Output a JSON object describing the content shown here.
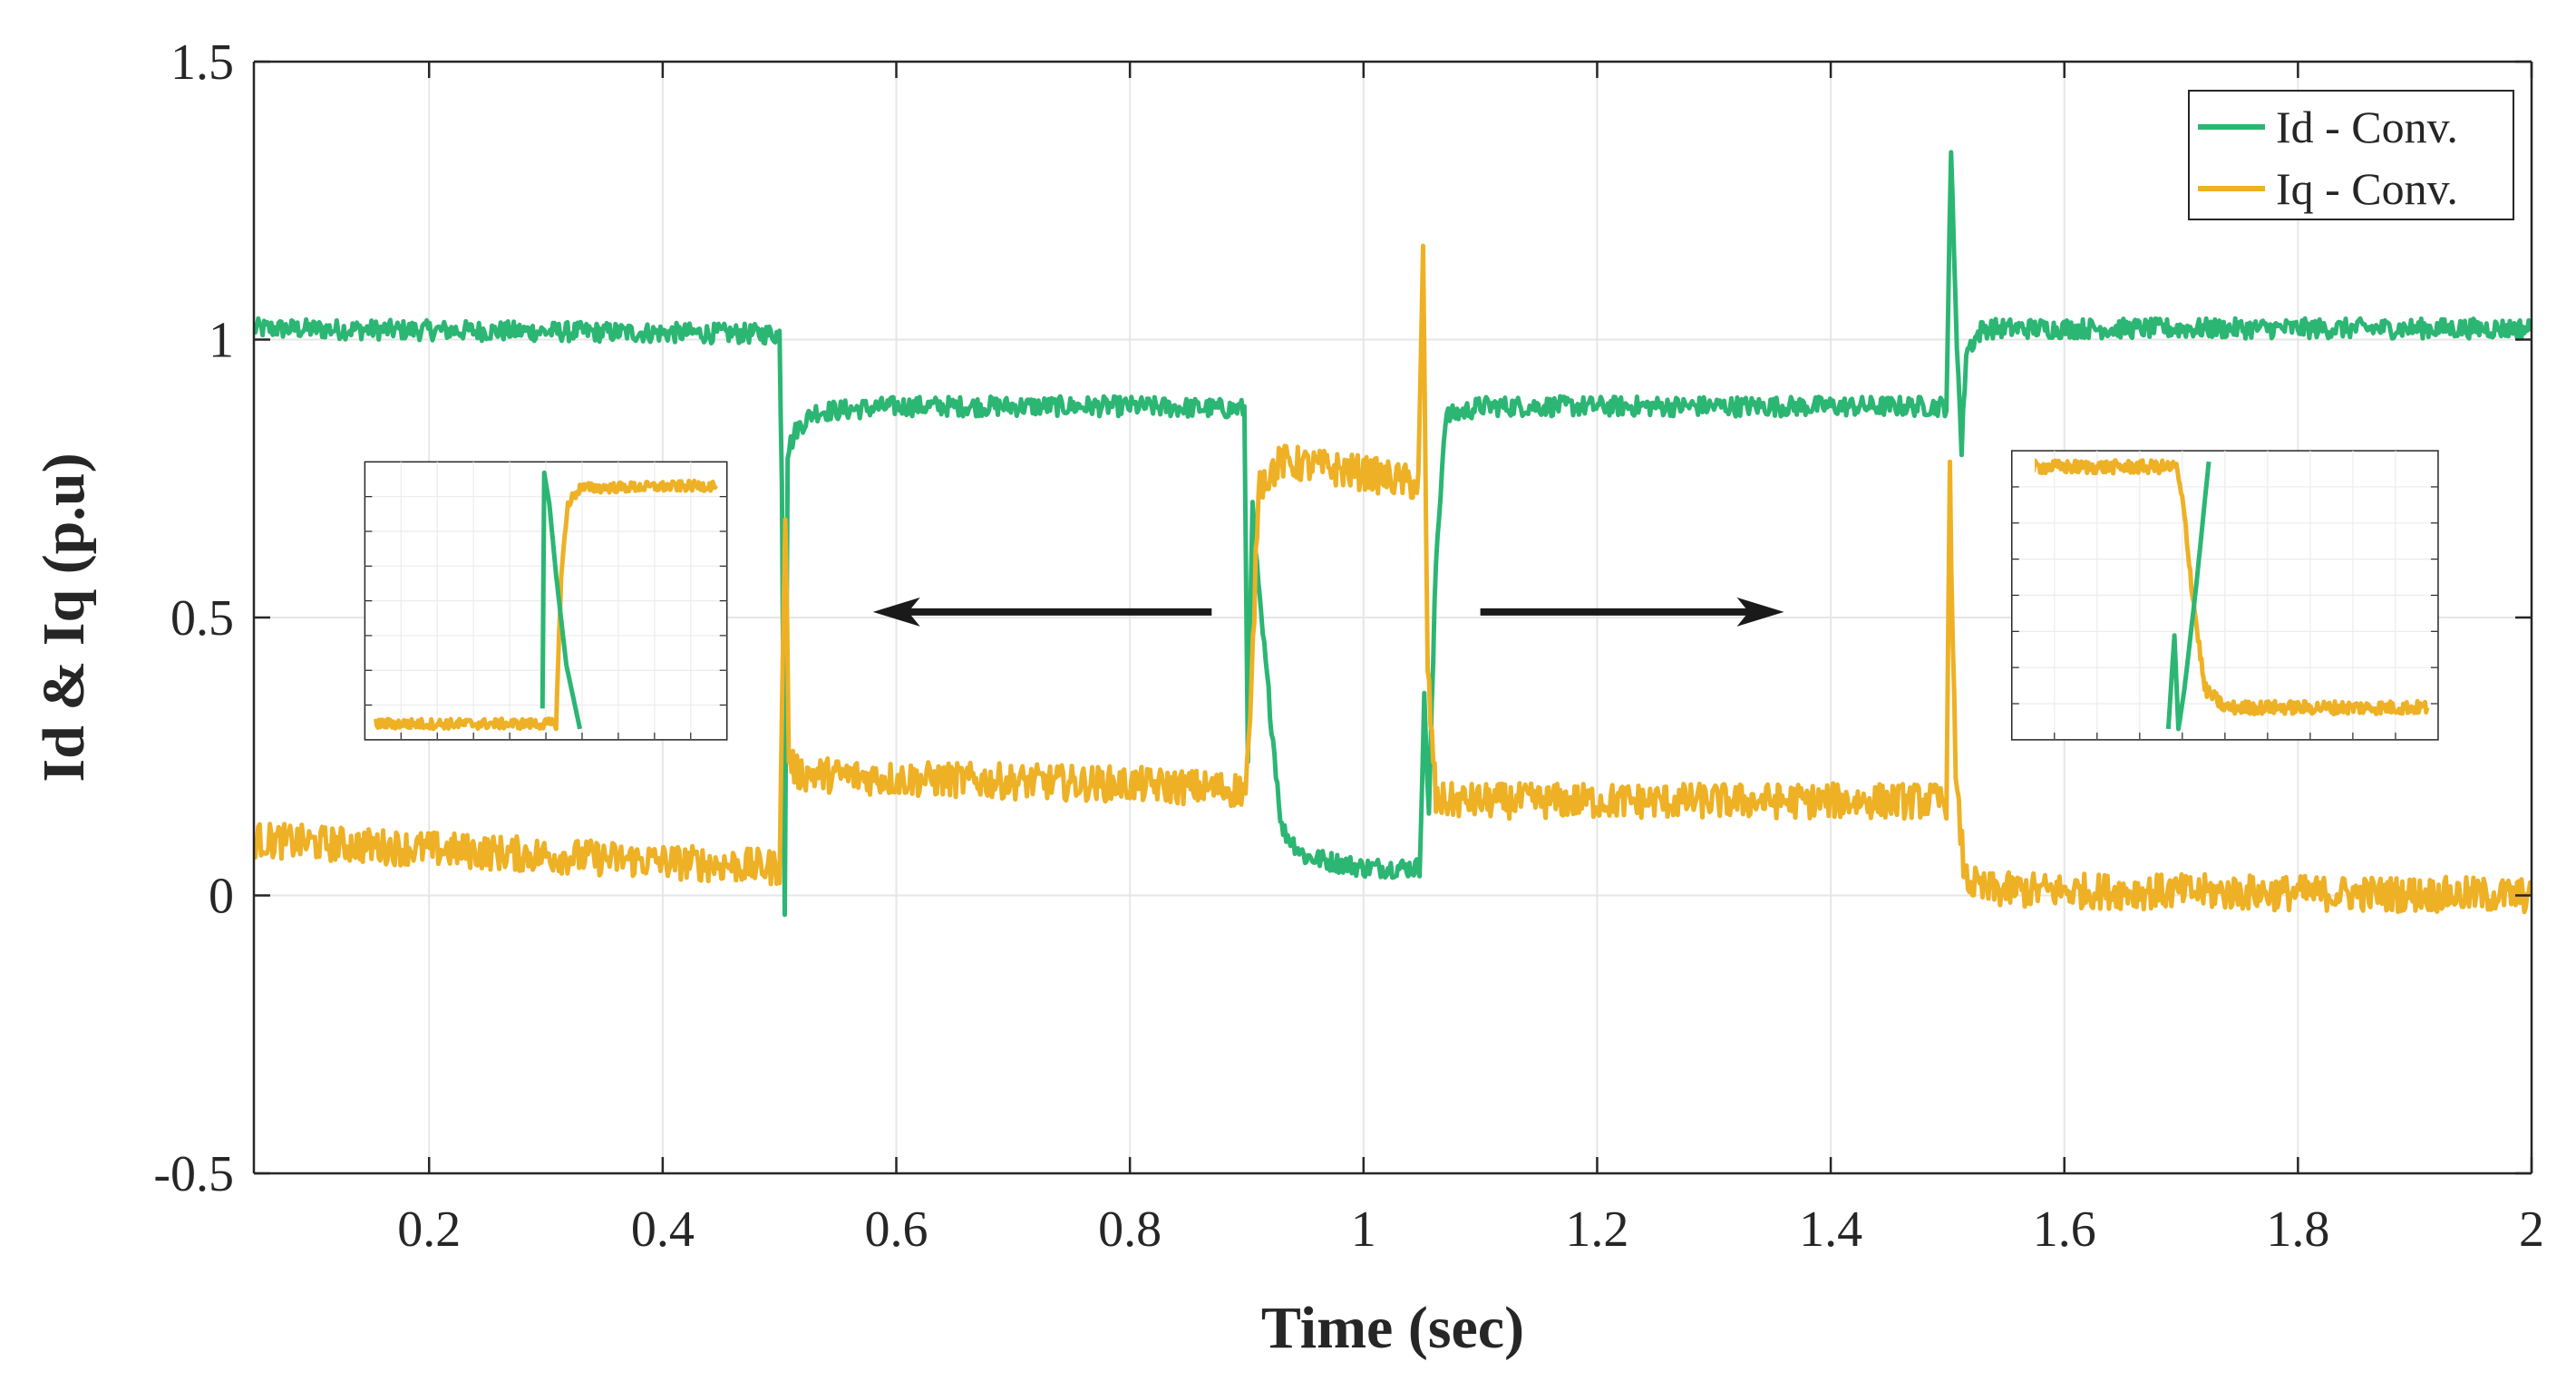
{
  "chart_data": {
    "type": "line",
    "title": "",
    "xlabel": "Time (sec)",
    "ylabel": "Id & Iq (p.u)",
    "xlim": [
      0.05,
      2.0
    ],
    "ylim": [
      -0.5,
      1.5
    ],
    "xticks": [
      0.2,
      0.4,
      0.6,
      0.8,
      1.0,
      1.2,
      1.4,
      1.6,
      1.8,
      2.0
    ],
    "xtick_labels": [
      "0.2",
      "0.4",
      "0.6",
      "0.8",
      "1",
      "1.2",
      "1.4",
      "1.6",
      "1.8",
      "2"
    ],
    "yticks": [
      -0.5,
      0,
      0.5,
      1,
      1.5
    ],
    "ytick_labels": [
      "-0.5",
      "0",
      "0.5",
      "1",
      "1.5"
    ],
    "grid": true,
    "legend_position": "top-right",
    "colors": {
      "id": "#2bb673",
      "iq": "#eeb125",
      "axis": "#262626",
      "grid": "#e6e6e6",
      "arrow": "#1a1a1a"
    },
    "series": [
      {
        "name": "Id - Conv.",
        "color": "#2bb673",
        "noise": 0.018,
        "points": [
          [
            0.05,
            1.02
          ],
          [
            0.5,
            1.01
          ],
          [
            0.502,
            0.75
          ],
          [
            0.5045,
            -0.02
          ],
          [
            0.507,
            0.8
          ],
          [
            0.515,
            0.84
          ],
          [
            0.53,
            0.87
          ],
          [
            0.6,
            0.88
          ],
          [
            0.8,
            0.88
          ],
          [
            0.898,
            0.875
          ],
          [
            0.901,
            0.25
          ],
          [
            0.905,
            0.7
          ],
          [
            0.91,
            0.55
          ],
          [
            0.93,
            0.12
          ],
          [
            0.95,
            0.07
          ],
          [
            1.0,
            0.05
          ],
          [
            1.048,
            0.05
          ],
          [
            1.052,
            0.35
          ],
          [
            1.056,
            0.15
          ],
          [
            1.062,
            0.6
          ],
          [
            1.07,
            0.86
          ],
          [
            1.1,
            0.88
          ],
          [
            1.3,
            0.88
          ],
          [
            1.499,
            0.88
          ],
          [
            1.503,
            1.33
          ],
          [
            1.508,
            1.0
          ],
          [
            1.512,
            0.8
          ],
          [
            1.516,
            0.98
          ],
          [
            1.53,
            1.02
          ],
          [
            2.0,
            1.02
          ]
        ]
      },
      {
        "name": "Iq - Conv.",
        "color": "#eeb125",
        "noise": 0.032,
        "points": [
          [
            0.05,
            0.1
          ],
          [
            0.5,
            0.05
          ],
          [
            0.502,
            0.3
          ],
          [
            0.505,
            0.7
          ],
          [
            0.508,
            0.25
          ],
          [
            0.515,
            0.22
          ],
          [
            0.6,
            0.21
          ],
          [
            0.8,
            0.2
          ],
          [
            0.899,
            0.19
          ],
          [
            0.903,
            0.3
          ],
          [
            0.91,
            0.74
          ],
          [
            0.93,
            0.78
          ],
          [
            1.0,
            0.76
          ],
          [
            1.047,
            0.74
          ],
          [
            1.051,
            1.15
          ],
          [
            1.055,
            0.4
          ],
          [
            1.062,
            0.17
          ],
          [
            1.1,
            0.17
          ],
          [
            1.3,
            0.17
          ],
          [
            1.499,
            0.17
          ],
          [
            1.502,
            0.75
          ],
          [
            1.507,
            0.2
          ],
          [
            1.515,
            0.03
          ],
          [
            1.53,
            0.01
          ],
          [
            2.0,
            0.0
          ]
        ]
      }
    ],
    "annotations": [
      {
        "type": "arrow",
        "direction": "left",
        "from": [
          0.87,
          0.51
        ],
        "to": [
          0.58,
          0.51
        ]
      },
      {
        "type": "arrow",
        "direction": "right",
        "from": [
          1.1,
          0.51
        ],
        "to": [
          1.36,
          0.51
        ]
      }
    ],
    "insets": [
      {
        "name": "zoom near t = 0.5 s",
        "location": [
          0.145,
          0.78,
          0.455,
          0.28
        ],
        "xlim": [
          0,
          1
        ],
        "ylim": [
          0,
          1
        ],
        "series": [
          {
            "name": "Iq - Conv.",
            "color": "#eeb125",
            "noise": 0.02,
            "points": [
              [
                0,
                0.02
              ],
              [
                0.53,
                0.02
              ],
              [
                0.545,
                0.6
              ],
              [
                0.565,
                0.88
              ],
              [
                0.6,
                0.94
              ],
              [
                1.0,
                0.95
              ]
            ]
          },
          {
            "name": "Id - Conv.",
            "color": "#2bb673",
            "noise": 0.0,
            "points": [
              [
                0.49,
                0.08
              ],
              [
                0.495,
                1.0
              ],
              [
                0.51,
                0.88
              ],
              [
                0.53,
                0.6
              ],
              [
                0.56,
                0.25
              ],
              [
                0.6,
                0.0
              ]
            ]
          }
        ]
      },
      {
        "name": "zoom near t = 1.5 s",
        "location": [
          1.555,
          0.8,
          1.92,
          0.28
        ],
        "xlim": [
          0,
          1
        ],
        "ylim": [
          0,
          1
        ],
        "series": [
          {
            "name": "Iq - Conv.",
            "color": "#eeb125",
            "noise": 0.025,
            "points": [
              [
                0,
                0.98
              ],
              [
                0.38,
                0.98
              ],
              [
                0.4,
                0.8
              ],
              [
                0.42,
                0.5
              ],
              [
                0.45,
                0.15
              ],
              [
                0.5,
                0.08
              ],
              [
                1.0,
                0.08
              ]
            ]
          },
          {
            "name": "Id - Conv.",
            "color": "#2bb673",
            "noise": 0.0,
            "points": [
              [
                0.36,
                0.0
              ],
              [
                0.375,
                0.35
              ],
              [
                0.385,
                0.0
              ],
              [
                0.4,
                0.15
              ],
              [
                0.43,
                0.55
              ],
              [
                0.46,
                1.0
              ]
            ]
          }
        ]
      }
    ]
  }
}
